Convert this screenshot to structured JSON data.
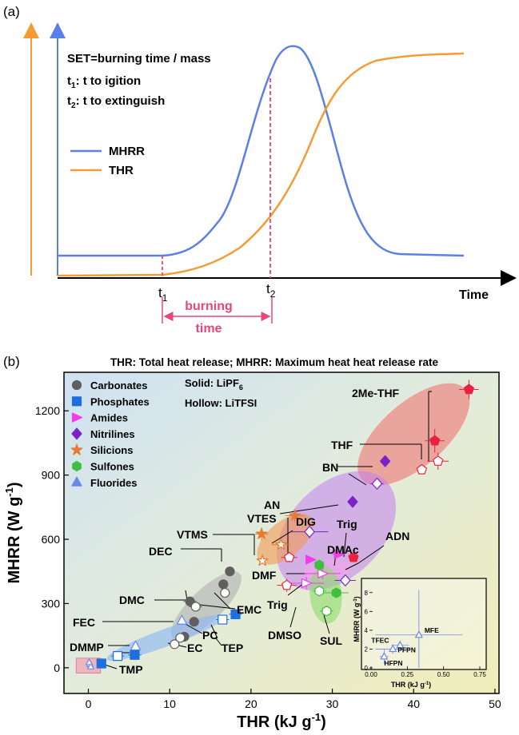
{
  "panel_a": {
    "label": "(a)",
    "set_def": "SET=burning time / mass",
    "t1_def": "t to igition",
    "t2_def": "t to extinguish",
    "t_sym": "t",
    "sub1": "1",
    "sub2": "2",
    "legend": [
      "MHRR",
      "THR"
    ],
    "xlabel": "Time",
    "burning_1": "burning",
    "burning_2": "time"
  },
  "panel_b": {
    "label": "(b)",
    "header": "THR: Total heat release; MHRR: Maximum heat heat release rate",
    "solid_note": "Solid: LiPF",
    "solid_sub": "6",
    "hollow_note": "Hollow: LiTFSI"
  },
  "colors": {
    "mhrr_line": "#5b7fe8",
    "thr_line": "#f39c34",
    "dash": "#e8457a",
    "carbonates": "#5f5f5f",
    "phosphates": "#1d6ee0",
    "amides": "#f23ce8",
    "nitrilines": "#7a22c8",
    "silicions": "#e67a30",
    "sulfones": "#3fbe3f",
    "fluorides": "#6a87ee",
    "thf_group": "#e8223e"
  },
  "chart_data": [
    {
      "type": "line",
      "series": [
        {
          "name": "MHRR",
          "x": [
            0,
            0.23,
            0.35,
            0.44,
            0.5,
            0.56,
            0.62,
            0.68,
            1.0
          ],
          "y": [
            0.1,
            0.1,
            0.35,
            0.75,
            1.0,
            0.9,
            0.45,
            0.1,
            0.08
          ]
        },
        {
          "name": "THR",
          "x": [
            0,
            0.23,
            0.35,
            0.45,
            0.55,
            0.65,
            0.8,
            1.0
          ],
          "y": [
            0,
            0.0,
            0.15,
            0.35,
            0.6,
            0.85,
            0.96,
            0.98
          ]
        }
      ],
      "xlabel": "Time",
      "ylabel": ""
    },
    {
      "type": "scatter",
      "xlabel": "THR (kJ g",
      "xlabel_sup": "-1",
      "ylabel": "MHRR (W g",
      "ylabel_sup": "-1",
      "xlim": [
        -3,
        50.5
      ],
      "ylim": [
        -120,
        1380
      ],
      "xticks": [
        0,
        10,
        20,
        30,
        40,
        50
      ],
      "yticks": [
        0,
        300,
        600,
        900,
        1200
      ],
      "legend": [
        {
          "name": "Carbonates",
          "shape": "circle",
          "color": "#5f5f5f"
        },
        {
          "name": "Phosphates",
          "shape": "square",
          "color": "#1d6ee0"
        },
        {
          "name": "Amides",
          "shape": "triangle-right",
          "color": "#f23ce8"
        },
        {
          "name": "Nitrilines",
          "shape": "diamond",
          "color": "#7a22c8"
        },
        {
          "name": "Silicions",
          "shape": "star",
          "color": "#e67a30"
        },
        {
          "name": "Sulfones",
          "shape": "hexagon",
          "color": "#3fbe3f"
        },
        {
          "name": "Fluorides",
          "shape": "triangle-up",
          "color": "#6a87ee"
        }
      ],
      "points": [
        {
          "x": 46.8,
          "y": 1300,
          "shape": "pentagon",
          "color": "#e8223e",
          "filled": true,
          "ex": 1.2,
          "ey": 45
        },
        {
          "x": 42.6,
          "y": 1060,
          "shape": "pentagon",
          "color": "#e8223e",
          "filled": true,
          "ex": 1.2,
          "ey": 55
        },
        {
          "x": 43.0,
          "y": 965,
          "shape": "pentagon",
          "color": "#e8223e",
          "filled": false,
          "ex": 1.3,
          "ey": 40
        },
        {
          "x": 41.0,
          "y": 925,
          "shape": "pentagon",
          "color": "#e8223e",
          "filled": false,
          "ex": 0,
          "ey": 0
        },
        {
          "x": 36.5,
          "y": 965,
          "shape": "diamond",
          "color": "#7a22c8",
          "filled": true,
          "ex": 0,
          "ey": 0
        },
        {
          "x": 35.5,
          "y": 860,
          "shape": "diamond",
          "color": "#7a22c8",
          "filled": false,
          "ex": 0.8,
          "ey": 20
        },
        {
          "x": 32.5,
          "y": 775,
          "shape": "diamond",
          "color": "#7a22c8",
          "filled": true,
          "ex": 0.6,
          "ey": 0
        },
        {
          "x": 27.2,
          "y": 635,
          "shape": "diamond",
          "color": "#7a22c8",
          "filled": false,
          "ex": 2.3,
          "ey": 30
        },
        {
          "x": 32.6,
          "y": 515,
          "shape": "pentagon",
          "color": "#e8223e",
          "filled": true,
          "ex": 0,
          "ey": 0
        },
        {
          "x": 31.6,
          "y": 408,
          "shape": "diamond",
          "color": "#7a22c8",
          "filled": false,
          "ex": 1.3,
          "ey": 0
        },
        {
          "x": 30.8,
          "y": 530,
          "shape": "triangle-right",
          "color": "#f23ce8",
          "filled": true,
          "ex": 0.8,
          "ey": 0
        },
        {
          "x": 27.3,
          "y": 505,
          "shape": "triangle-right",
          "color": "#f23ce8",
          "filled": true,
          "ex": 0.6,
          "ey": 0
        },
        {
          "x": 28.8,
          "y": 440,
          "shape": "triangle-right",
          "color": "#f23ce8",
          "filled": false,
          "ex": 2.2,
          "ey": 25
        },
        {
          "x": 26.8,
          "y": 395,
          "shape": "triangle-right",
          "color": "#f23ce8",
          "filled": false,
          "ex": 2.2,
          "ey": 30
        },
        {
          "x": 25.4,
          "y": 710,
          "shape": "star",
          "color": "#e67a30",
          "filled": true,
          "ex": 1.2,
          "ey": 30
        },
        {
          "x": 21.3,
          "y": 625,
          "shape": "star",
          "color": "#e67a30",
          "filled": true,
          "ex": 0.8,
          "ey": 30
        },
        {
          "x": 23.7,
          "y": 575,
          "shape": "star",
          "color": "#e67a30",
          "filled": false,
          "ex": 1.2,
          "ey": 0
        },
        {
          "x": 21.4,
          "y": 500,
          "shape": "star",
          "color": "#e67a30",
          "filled": false,
          "ex": 0,
          "ey": 0
        },
        {
          "x": 24.7,
          "y": 515,
          "shape": "pentagon",
          "color": "#e8223e",
          "filled": false,
          "ex": 1.0,
          "ey": 0
        },
        {
          "x": 24.4,
          "y": 385,
          "shape": "pentagon",
          "color": "#e8223e",
          "filled": false,
          "ex": 1.2,
          "ey": 30
        },
        {
          "x": 28.4,
          "y": 480,
          "shape": "hexagon",
          "color": "#3fbe3f",
          "filled": true,
          "ex": 0.6,
          "ey": 0
        },
        {
          "x": 30.5,
          "y": 350,
          "shape": "hexagon",
          "color": "#3fbe3f",
          "filled": true,
          "ex": 1.5,
          "ey": 0
        },
        {
          "x": 28.4,
          "y": 358,
          "shape": "hexagon",
          "color": "#3fbe3f",
          "filled": false,
          "ex": 0.8,
          "ey": 0
        },
        {
          "x": 29.3,
          "y": 265,
          "shape": "hexagon",
          "color": "#3fbe3f",
          "filled": false,
          "ex": 0.8,
          "ey": 0
        },
        {
          "x": 17.4,
          "y": 450,
          "shape": "circle",
          "color": "#5f5f5f",
          "filled": true,
          "ex": 0,
          "ey": 0
        },
        {
          "x": 16.6,
          "y": 390,
          "shape": "circle",
          "color": "#5f5f5f",
          "filled": true,
          "ex": 0,
          "ey": 0
        },
        {
          "x": 16.8,
          "y": 350,
          "shape": "circle",
          "color": "#5f5f5f",
          "filled": false,
          "ex": 0,
          "ey": 0
        },
        {
          "x": 12.5,
          "y": 310,
          "shape": "circle",
          "color": "#5f5f5f",
          "filled": true,
          "ex": 0.8,
          "ey": 0
        },
        {
          "x": 13.2,
          "y": 285,
          "shape": "circle",
          "color": "#5f5f5f",
          "filled": false,
          "ex": 0.8,
          "ey": 0
        },
        {
          "x": 13.0,
          "y": 215,
          "shape": "circle",
          "color": "#5f5f5f",
          "filled": true,
          "ex": 0,
          "ey": 0
        },
        {
          "x": 11.8,
          "y": 145,
          "shape": "circle",
          "color": "#5f5f5f",
          "filled": true,
          "ex": 0.6,
          "ey": 0
        },
        {
          "x": 10.6,
          "y": 110,
          "shape": "circle",
          "color": "#5f5f5f",
          "filled": false,
          "ex": 0.6,
          "ey": 0
        },
        {
          "x": 11.3,
          "y": 140,
          "shape": "circle",
          "color": "#5f5f5f",
          "filled": false,
          "ex": 0,
          "ey": 0
        },
        {
          "x": 11.5,
          "y": 220,
          "shape": "triangle-up",
          "color": "#6a87ee",
          "filled": false,
          "ex": 0,
          "ey": 0
        },
        {
          "x": 18.1,
          "y": 250,
          "shape": "square",
          "color": "#1d6ee0",
          "filled": true,
          "ex": 0.8,
          "ey": 0
        },
        {
          "x": 16.5,
          "y": 225,
          "shape": "square",
          "color": "#1d6ee0",
          "filled": false,
          "ex": 0.8,
          "ey": 0
        },
        {
          "x": 5.8,
          "y": 100,
          "shape": "triangle-up",
          "color": "#6a87ee",
          "filled": false,
          "ex": 0,
          "ey": 0
        },
        {
          "x": 5.7,
          "y": 60,
          "shape": "square",
          "color": "#1d6ee0",
          "filled": true,
          "ex": 0.8,
          "ey": 0
        },
        {
          "x": 3.6,
          "y": 55,
          "shape": "square",
          "color": "#1d6ee0",
          "filled": false,
          "ex": 0.8,
          "ey": 0
        },
        {
          "x": 1.6,
          "y": 20,
          "shape": "square",
          "color": "#1d6ee0",
          "filled": true,
          "ex": 0.5,
          "ey": 0
        }
      ],
      "labels": [
        "2Me-THF",
        "THF",
        "BN",
        "AN",
        "VTES",
        "VTMS",
        "DIG",
        "Trig",
        "DMAc",
        "ADN",
        "DMF",
        "Trig",
        "DMSO",
        "SUL",
        "DEC",
        "DMC",
        "EMC",
        "FEC",
        "PC",
        "DMMP",
        "EC",
        "TEP",
        "TMP"
      ]
    },
    {
      "type": "scatter",
      "xlabel": "THR (kJ g",
      "xlabel_sup": "-1",
      "ylabel": "MHRR (W g",
      "ylabel_sup": "-1",
      "xlim": [
        0,
        0.75
      ],
      "ylim": [
        0,
        9
      ],
      "xticks": [
        "0.00",
        "0.25",
        "0.50",
        "0.75"
      ],
      "yticks": [
        "0",
        "2",
        "4",
        "6",
        "8"
      ],
      "points": [
        {
          "name": "MFE",
          "x": 0.33,
          "y": 3.5,
          "ex": 0.3,
          "ey": 4.8
        },
        {
          "name": "TFEC",
          "x": 0.2,
          "y": 2.4,
          "ex": 0.06,
          "ey": 0.5
        },
        {
          "name": "PFPN",
          "x": 0.15,
          "y": 2.0,
          "ex": 0.12,
          "ey": 0.5
        },
        {
          "name": "HFPN",
          "x": 0.09,
          "y": 1.2,
          "ex": 0.03,
          "ey": 0.8
        }
      ]
    }
  ]
}
